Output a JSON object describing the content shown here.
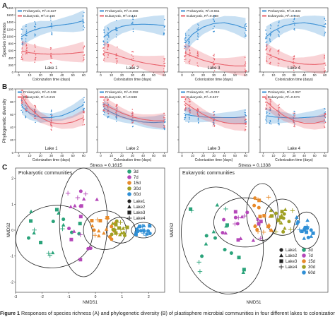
{
  "panel_letters": {
    "a": "A",
    "b": "B",
    "c": "C"
  },
  "caption": {
    "label": "Figure 1",
    "text": " Responses of species richness (A) and phylogenetic diversity (B) of plastisphere microbial communities in four different lakes to colonization"
  },
  "colors": {
    "prokaryotic": "#3a8fd4",
    "eukaryotic": "#e8606a",
    "group_3d": "#2aa37a",
    "group_7d": "#b548b9",
    "group_15d": "#e88a2a",
    "group_30d": "#a0a023",
    "group_60d": "#2f8fd6"
  },
  "chart_data": [
    {
      "type": "scatter",
      "panel": "A",
      "ylabel": "Species richness",
      "xlabel": "Colonization time (days)",
      "xticks": [
        0,
        10,
        20,
        30,
        40,
        50,
        60
      ],
      "ylim": [
        0,
        1800
      ],
      "yticks": [
        0,
        200,
        400,
        600,
        800,
        1000,
        1200,
        1400,
        1600,
        1800
      ],
      "facets": [
        {
          "lake": "Lake 1",
          "legend": [
            "Prokaryotic, R²=0.327",
            "Eukaryotic, R²=0.150"
          ],
          "series": [
            {
              "name": "Prokaryotic",
              "fit": [
                [
                  3,
                  1000
                ],
                [
                  10,
                  1130
                ],
                [
                  20,
                  1230
                ],
                [
                  30,
                  1280
                ],
                [
                  40,
                  1320
                ],
                [
                  50,
                  1360
                ],
                [
                  60,
                  1440
                ]
              ]
            },
            {
              "name": "Eukaryotic",
              "fit": [
                [
                  3,
                  590
                ],
                [
                  10,
                  540
                ],
                [
                  20,
                  510
                ],
                [
                  30,
                  500
                ],
                [
                  40,
                  505
                ],
                [
                  50,
                  525
                ],
                [
                  60,
                  560
                ]
              ]
            }
          ]
        },
        {
          "lake": "Lake 2",
          "legend": [
            "Prokaryotic, R²=0.366",
            "Eukaryotic, R²=0.434"
          ],
          "series": [
            {
              "name": "Prokaryotic",
              "fit": [
                [
                  3,
                  980
                ],
                [
                  10,
                  1150
                ],
                [
                  20,
                  1280
                ],
                [
                  30,
                  1330
                ],
                [
                  40,
                  1340
                ],
                [
                  50,
                  1330
                ],
                [
                  60,
                  1300
                ]
              ]
            },
            {
              "name": "Eukaryotic",
              "fit": [
                [
                  3,
                  560
                ],
                [
                  10,
                  520
                ],
                [
                  20,
                  420
                ],
                [
                  30,
                  330
                ],
                [
                  40,
                  260
                ],
                [
                  50,
                  210
                ],
                [
                  60,
                  170
                ]
              ]
            }
          ]
        },
        {
          "lake": "Lake 3",
          "legend": [
            "Prokaryotic, R²=0.551",
            "Eukaryotic, R²=0.568"
          ],
          "series": [
            {
              "name": "Prokaryotic",
              "fit": [
                [
                  3,
                  820
                ],
                [
                  10,
                  1060
                ],
                [
                  20,
                  1260
                ],
                [
                  30,
                  1360
                ],
                [
                  40,
                  1380
                ],
                [
                  50,
                  1320
                ],
                [
                  60,
                  1220
                ]
              ]
            },
            {
              "name": "Eukaryotic",
              "fit": [
                [
                  3,
                  520
                ],
                [
                  10,
                  440
                ],
                [
                  20,
                  330
                ],
                [
                  30,
                  250
                ],
                [
                  40,
                  200
                ],
                [
                  50,
                  170
                ],
                [
                  60,
                  170
                ]
              ]
            }
          ]
        },
        {
          "lake": "Lake 4",
          "legend": [
            "Prokaryotic, R²=0.334",
            "Eukaryotic, R²=0.344"
          ],
          "series": [
            {
              "name": "Prokaryotic",
              "fit": [
                [
                  3,
                  990
                ],
                [
                  10,
                  1150
                ],
                [
                  20,
                  1290
                ],
                [
                  30,
                  1360
                ],
                [
                  40,
                  1380
                ],
                [
                  50,
                  1340
                ],
                [
                  60,
                  1270
                ]
              ]
            },
            {
              "name": "Eukaryotic",
              "fit": [
                [
                  3,
                  520
                ],
                [
                  10,
                  430
                ],
                [
                  20,
                  330
                ],
                [
                  30,
                  260
                ],
                [
                  40,
                  220
                ],
                [
                  50,
                  210
                ],
                [
                  60,
                  230
                ]
              ]
            }
          ]
        }
      ]
    },
    {
      "type": "scatter",
      "panel": "B",
      "ylabel": "Phylogenetic diversity",
      "xlabel": "Colonization time (days)",
      "xticks": [
        0,
        10,
        20,
        30,
        40,
        50,
        60
      ],
      "ylim": [
        0,
        100
      ],
      "yticks": [
        0,
        20,
        40,
        60,
        80,
        100
      ],
      "facets": [
        {
          "lake": "Lake 1",
          "legend": [
            "Prokaryotic, R²=0.248",
            "Eukaryotic, R²=0.219"
          ],
          "series": [
            {
              "name": "Prokaryotic",
              "fit": [
                [
                  3,
                  72
                ],
                [
                  10,
                  62
                ],
                [
                  20,
                  55
                ],
                [
                  30,
                  55
                ],
                [
                  40,
                  58
                ],
                [
                  50,
                  65
                ],
                [
                  60,
                  75
                ]
              ]
            },
            {
              "name": "Eukaryotic",
              "fit": [
                [
                  3,
                  88
                ],
                [
                  10,
                  70
                ],
                [
                  20,
                  55
                ],
                [
                  30,
                  47
                ],
                [
                  40,
                  45
                ],
                [
                  50,
                  48
                ],
                [
                  60,
                  55
                ]
              ]
            }
          ]
        },
        {
          "lake": "Lake 2",
          "legend": [
            "Prokaryotic, R²=0.392",
            "Eukaryotic, R²=0.598"
          ],
          "series": [
            {
              "name": "Prokaryotic",
              "fit": [
                [
                  3,
                  70
                ],
                [
                  10,
                  63
                ],
                [
                  20,
                  56
                ],
                [
                  30,
                  51
                ],
                [
                  40,
                  48
                ],
                [
                  50,
                  47
                ],
                [
                  60,
                  48
                ]
              ]
            },
            {
              "name": "Eukaryotic",
              "fit": [
                [
                  3,
                  76
                ],
                [
                  10,
                  70
                ],
                [
                  20,
                  62
                ],
                [
                  30,
                  56
                ],
                [
                  40,
                  52
                ],
                [
                  50,
                  50
                ],
                [
                  60,
                  50
                ]
              ]
            }
          ]
        },
        {
          "lake": "Lake 3",
          "legend": [
            "Prokaryotic, R²=0.013",
            "Eukaryotic, R²=0.637"
          ],
          "series": [
            {
              "name": "Prokaryotic",
              "fit": [
                [
                  3,
                  60
                ],
                [
                  10,
                  58
                ],
                [
                  20,
                  56
                ],
                [
                  30,
                  55
                ],
                [
                  40,
                  55
                ],
                [
                  50,
                  55
                ],
                [
                  60,
                  56
                ]
              ]
            },
            {
              "name": "Eukaryotic",
              "fit": [
                [
                  3,
                  78
                ],
                [
                  10,
                  70
                ],
                [
                  20,
                  60
                ],
                [
                  30,
                  52
                ],
                [
                  40,
                  47
                ],
                [
                  50,
                  45
                ],
                [
                  60,
                  46
                ]
              ]
            }
          ]
        },
        {
          "lake": "Lake 4",
          "legend": [
            "Prokaryotic, R²=0.067",
            "Eukaryotic, R²=0.574"
          ],
          "series": [
            {
              "name": "Prokaryotic",
              "fit": [
                [
                  3,
                  58
                ],
                [
                  10,
                  56
                ],
                [
                  20,
                  55
                ],
                [
                  30,
                  54
                ],
                [
                  40,
                  55
                ],
                [
                  50,
                  56
                ],
                [
                  60,
                  58
                ]
              ]
            },
            {
              "name": "Eukaryotic",
              "fit": [
                [
                  3,
                  80
                ],
                [
                  10,
                  70
                ],
                [
                  20,
                  58
                ],
                [
                  30,
                  50
                ],
                [
                  40,
                  46
                ],
                [
                  50,
                  46
                ],
                [
                  60,
                  50
                ]
              ]
            }
          ]
        }
      ]
    },
    {
      "type": "scatter",
      "panel": "C",
      "title": "Prokaryotic communities",
      "stress": "Stress = 0.1615",
      "xlabel": "NMDS1",
      "ylabel": "NMDS2",
      "xticks": [
        "-3",
        "-2",
        "-1",
        "0",
        "1",
        "2"
      ],
      "yticks": [
        "-2",
        "-1",
        "0",
        "1",
        "2"
      ],
      "xlim": [
        -3,
        2.6
      ],
      "ylim": [
        -2.4,
        2.4
      ],
      "legend": {
        "groups": [
          "3d",
          "7d",
          "15d",
          "30d",
          "60d"
        ],
        "lakes": [
          "Lake1",
          "Lake2",
          "Lake3",
          "Lake4"
        ]
      },
      "groups": [
        {
          "name": "3d",
          "center": [
            -1.6,
            -0.1
          ]
        },
        {
          "name": "7d",
          "center": [
            -0.5,
            0.25
          ]
        },
        {
          "name": "15d",
          "center": [
            0.35,
            0.0
          ]
        },
        {
          "name": "30d",
          "center": [
            0.95,
            0.0
          ]
        },
        {
          "name": "60d",
          "center": [
            1.8,
            0.0
          ]
        }
      ]
    },
    {
      "type": "scatter",
      "panel": "C",
      "title": "Eukaryotic communities",
      "stress": "Stress = 0.1338",
      "xlabel": "NMDS1",
      "ylabel": "NMDS2",
      "legend": {
        "lakes": [
          "Lake1",
          "Lake2",
          "Lake3",
          "Lake4"
        ],
        "groups": [
          "3d",
          "7d",
          "15d",
          "30d",
          "60d"
        ]
      },
      "groups": [
        {
          "name": "3d",
          "center": [
            -1.5,
            -0.3
          ]
        },
        {
          "name": "7d",
          "center": [
            -0.6,
            0.2
          ]
        },
        {
          "name": "15d",
          "center": [
            0.1,
            0.6
          ]
        },
        {
          "name": "30d",
          "center": [
            0.8,
            0.4
          ]
        },
        {
          "name": "60d",
          "center": [
            1.6,
            0.0
          ]
        }
      ]
    }
  ]
}
